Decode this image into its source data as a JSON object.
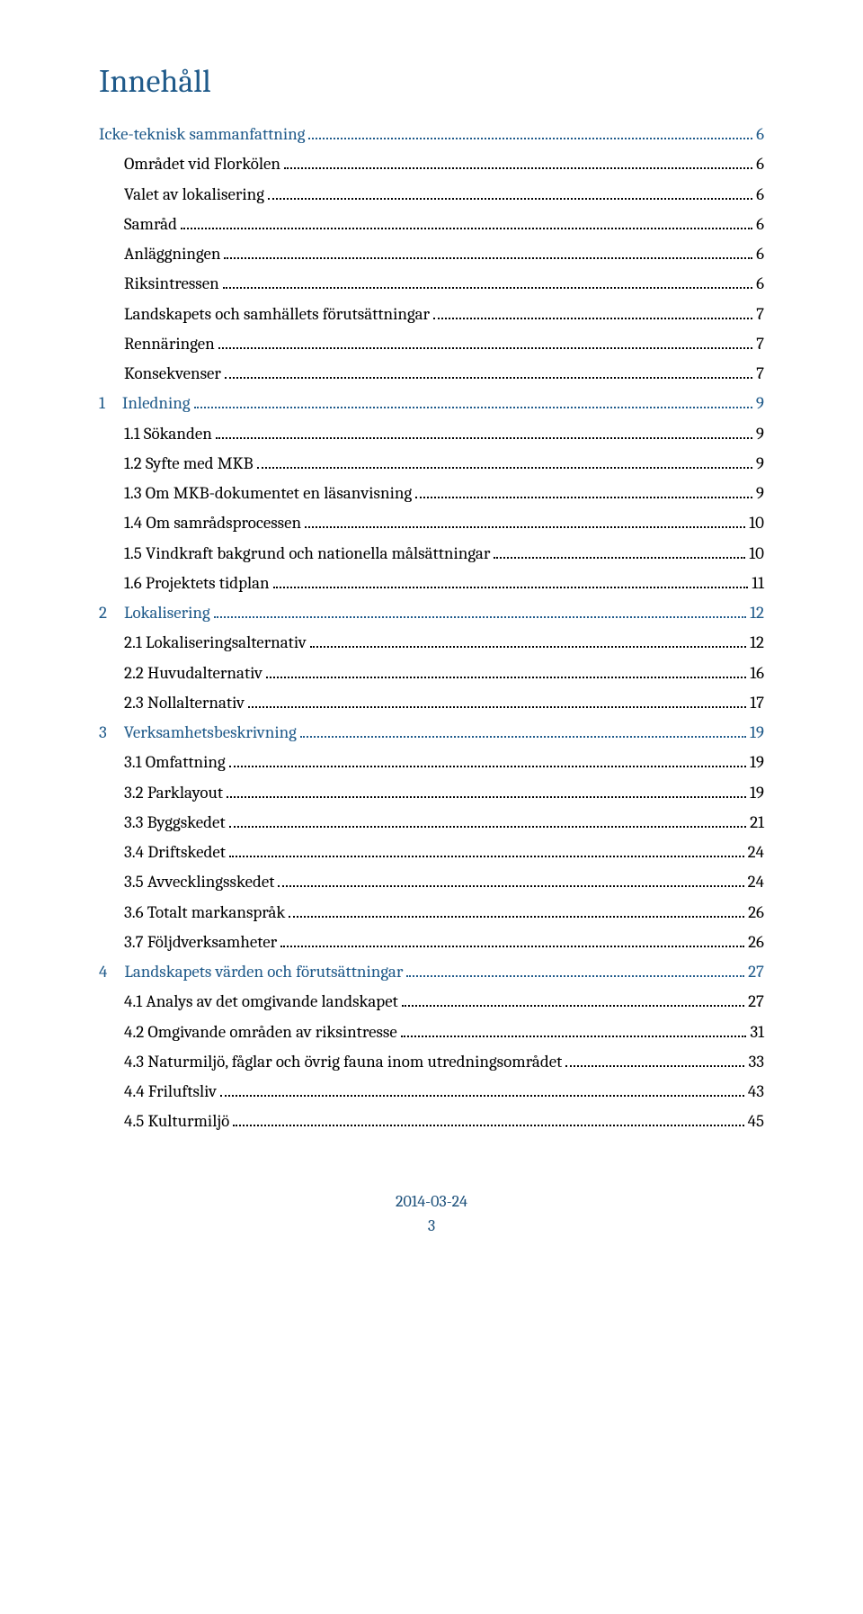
{
  "title": "Innehåll",
  "colors": {
    "accent": "#1f5a8a",
    "text": "#000000",
    "footer": "#1b4f7a",
    "background": "#ffffff"
  },
  "toc": [
    {
      "level": 0,
      "label": "Icke-teknisk sammanfattning",
      "page": "6"
    },
    {
      "level": 1,
      "label": "Området vid Florkölen",
      "page": "6"
    },
    {
      "level": 1,
      "label": "Valet av lokalisering",
      "page": "6"
    },
    {
      "level": 1,
      "label": "Samråd",
      "page": "6"
    },
    {
      "level": 1,
      "label": "Anläggningen",
      "page": "6"
    },
    {
      "level": 1,
      "label": "Riksintressen",
      "page": "6"
    },
    {
      "level": 1,
      "label": "Landskapets och samhällets förutsättningar",
      "page": "7"
    },
    {
      "level": 1,
      "label": "Rennäringen",
      "page": "7"
    },
    {
      "level": 1,
      "label": "Konsekvenser",
      "page": "7"
    },
    {
      "level": 0,
      "label": "1 Inledning",
      "page": "9"
    },
    {
      "level": 1,
      "label": "1.1  Sökanden",
      "page": "9"
    },
    {
      "level": 1,
      "label": "1.2  Syfte med MKB",
      "page": "9"
    },
    {
      "level": 1,
      "label": "1.3  Om MKB-dokumentet en läsanvisning",
      "page": "9"
    },
    {
      "level": 1,
      "label": "1.4  Om samrådsprocessen",
      "page": "10"
    },
    {
      "level": 1,
      "label": "1.5  Vindkraft bakgrund och nationella målsättningar",
      "page": "10"
    },
    {
      "level": 1,
      "label": "1.6  Projektets tidplan",
      "page": "11"
    },
    {
      "level": 0,
      "label": "2 Lokalisering",
      "page": "12"
    },
    {
      "level": 1,
      "label": "2.1  Lokaliseringsalternativ",
      "page": "12"
    },
    {
      "level": 1,
      "label": "2.2  Huvudalternativ",
      "page": "16"
    },
    {
      "level": 1,
      "label": "2.3  Nollalternativ",
      "page": "17"
    },
    {
      "level": 0,
      "label": "3 Verksamhetsbeskrivning",
      "page": "19"
    },
    {
      "level": 1,
      "label": "3.1  Omfattning",
      "page": "19"
    },
    {
      "level": 1,
      "label": "3.2  Parklayout",
      "page": "19"
    },
    {
      "level": 1,
      "label": "3.3  Byggskedet",
      "page": "21"
    },
    {
      "level": 1,
      "label": "3.4  Driftskedet",
      "page": "24"
    },
    {
      "level": 1,
      "label": "3.5  Avvecklingsskedet",
      "page": "24"
    },
    {
      "level": 1,
      "label": "3.6  Totalt markanspråk",
      "page": "26"
    },
    {
      "level": 1,
      "label": "3.7  Följdverksamheter",
      "page": "26"
    },
    {
      "level": 0,
      "label": "4 Landskapets värden och förutsättningar",
      "page": "27"
    },
    {
      "level": 1,
      "label": "4.1  Analys av det omgivande landskapet",
      "page": "27"
    },
    {
      "level": 1,
      "label": "4.2  Omgivande områden av riksintresse",
      "page": "31"
    },
    {
      "level": 1,
      "label": "4.3  Naturmiljö, fåglar och övrig fauna inom utredningsområdet",
      "page": "33"
    },
    {
      "level": 1,
      "label": "4.4  Friluftsliv",
      "page": "43"
    },
    {
      "level": 1,
      "label": "4.5  Kulturmiljö",
      "page": "45"
    }
  ],
  "footer": {
    "date": "2014-03-24",
    "page": "3"
  }
}
